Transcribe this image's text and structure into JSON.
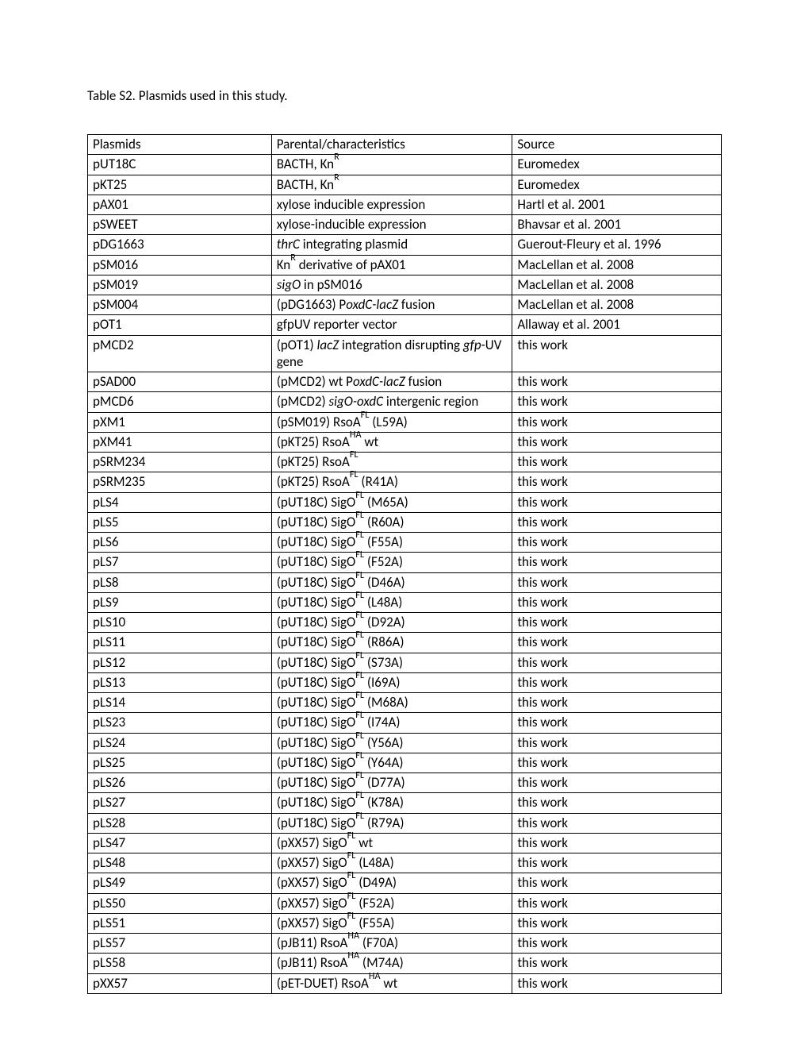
{
  "caption": "Table S2. Plasmids used in this study.",
  "columns": [
    "Plasmids",
    "Parental/characteristics",
    "Source"
  ],
  "rows": [
    {
      "p": "pUT18C",
      "c": "BACTH, Kn<sup>R</sup>",
      "s": "Euromedex"
    },
    {
      "p": "pKT25",
      "c": "BACTH, Kn<sup>R</sup>",
      "s": "Euromedex"
    },
    {
      "p": "pAX01",
      "c": "xylose inducible expression",
      "s": "Hartl et al. 2001"
    },
    {
      "p": "pSWEET",
      "c": "xylose-inducible expression",
      "s": "Bhavsar et al. 2001"
    },
    {
      "p": "pDG1663",
      "c": "<span class=\"ital\">thrC</span> integrating plasmid",
      "s": "Guerout-Fleury et al. 1996"
    },
    {
      "p": "pSM016",
      "c": "Kn<sup>R</sup> derivative of pAX01",
      "s": "MacLellan et al. 2008"
    },
    {
      "p": "pSM019",
      "c": "<span class=\"ital\">sigO</span> in pSM016",
      "s": "MacLellan et al. 2008"
    },
    {
      "p": "pSM004",
      "c": "(pDG1663) P<span class=\"ital\">oxdC-lacZ</span> fusion",
      "s": "MacLellan et al. 2008"
    },
    {
      "p": "pOT1",
      "c": "gfpUV reporter vector",
      "s": "Allaway et al. 2001"
    },
    {
      "p": "pMCD2",
      "c": "(pOT1) <span class=\"ital\">lacZ</span> integration disrupting <span class=\"ital\">gfp</span>-UV gene",
      "s": "this work"
    },
    {
      "p": "pSAD00",
      "c": "(pMCD2) wt P<span class=\"ital\">oxdC-lacZ</span> fusion",
      "s": "this work"
    },
    {
      "p": "pMCD6",
      "c": "(pMCD2) <span class=\"ital\">sigO-oxdC</span> intergenic region",
      "s": "this work"
    },
    {
      "p": "pXM1",
      "c": "(pSM019) RsoA<sup>FL</sup> (L59A)",
      "s": "this work"
    },
    {
      "p": "pXM41",
      "c": "(pKT25) RsoA<sup>HA</sup> wt",
      "s": "this work"
    },
    {
      "p": "pSRM234",
      "c": "(pKT25) RsoA<sup>FL</sup>",
      "s": "this work"
    },
    {
      "p": "pSRM235",
      "c": "(pKT25) RsoA<sup>FL</sup> (R41A)",
      "s": "this work"
    },
    {
      "p": "pLS4",
      "c": "(pUT18C) SigO<sup>FL</sup> (M65A)",
      "s": "this work"
    },
    {
      "p": "pLS5",
      "c": "(pUT18C) SigO<sup>FL</sup> (R60A)",
      "s": "this work"
    },
    {
      "p": "pLS6",
      "c": "(pUT18C) SigO<sup>FL</sup> (F55A)",
      "s": "this work"
    },
    {
      "p": "pLS7",
      "c": "(pUT18C) SigO<sup>FL</sup> (F52A)",
      "s": "this work"
    },
    {
      "p": "pLS8",
      "c": "(pUT18C) SigO<sup>FL</sup> (D46A)",
      "s": "this work"
    },
    {
      "p": "pLS9",
      "c": "(pUT18C) SigO<sup>FL</sup> (L48A)",
      "s": "this work"
    },
    {
      "p": "pLS10",
      "c": "(pUT18C) SigO<sup>FL</sup> (D92A)",
      "s": "this work"
    },
    {
      "p": "pLS11",
      "c": "(pUT18C) SigO<sup>FL</sup> (R86A)",
      "s": "this work"
    },
    {
      "p": "pLS12",
      "c": "(pUT18C) SigO<sup>FL</sup> (S73A)",
      "s": "this work"
    },
    {
      "p": "pLS13",
      "c": "(pUT18C) SigO<sup>FL</sup> (I69A)",
      "s": "this work"
    },
    {
      "p": "pLS14",
      "c": "(pUT18C) SigO<sup>FL</sup> (M68A)",
      "s": "this work"
    },
    {
      "p": "pLS23",
      "c": "(pUT18C) SigO<sup>FL</sup> (I74A)",
      "s": "this work"
    },
    {
      "p": "pLS24",
      "c": "(pUT18C) SigO<sup>FL</sup> (Y56A)",
      "s": "this work"
    },
    {
      "p": "pLS25",
      "c": "(pUT18C) SigO<sup>FL</sup> (Y64A)",
      "s": "this work"
    },
    {
      "p": "pLS26",
      "c": "(pUT18C) SigO<sup>FL</sup> (D77A)",
      "s": "this work"
    },
    {
      "p": "pLS27",
      "c": "(pUT18C) SigO<sup>FL</sup> (K78A)",
      "s": "this work"
    },
    {
      "p": "pLS28",
      "c": "(pUT18C) SigO<sup>FL</sup> (R79A)",
      "s": "this work"
    },
    {
      "p": "pLS47",
      "c": "(pXX57) SigO<sup>FL</sup> wt",
      "s": "this work"
    },
    {
      "p": "pLS48",
      "c": "(pXX57) SigO<sup>FL</sup> (L48A)",
      "s": "this work"
    },
    {
      "p": "pLS49",
      "c": "(pXX57) SigO<sup>FL</sup> (D49A)",
      "s": "this work"
    },
    {
      "p": "pLS50",
      "c": "(pXX57) SigO<sup>FL</sup> (F52A)",
      "s": "this work"
    },
    {
      "p": "pLS51",
      "c": "(pXX57) SigO<sup>FL</sup> (F55A)",
      "s": "this work"
    },
    {
      "p": "pLS57",
      "c": "(pJB11) RsoA<sup>HA</sup> (F70A)",
      "s": "this work"
    },
    {
      "p": "pLS58",
      "c": "(pJB11) RsoA<sup>HA</sup> (M74A)",
      "s": "this work"
    },
    {
      "p": "pXX57",
      "c": "(pET-DUET) RsoA<sup>HA</sup> wt",
      "s": "this work"
    }
  ],
  "styles": {
    "background_color": "#ffffff",
    "text_color": "#000000",
    "border_color": "#000000",
    "font_family": "Calibri",
    "caption_fontsize": 17,
    "cell_fontsize": 17,
    "col_widths_pct": [
      29,
      38,
      33
    ],
    "table_type": "table"
  }
}
